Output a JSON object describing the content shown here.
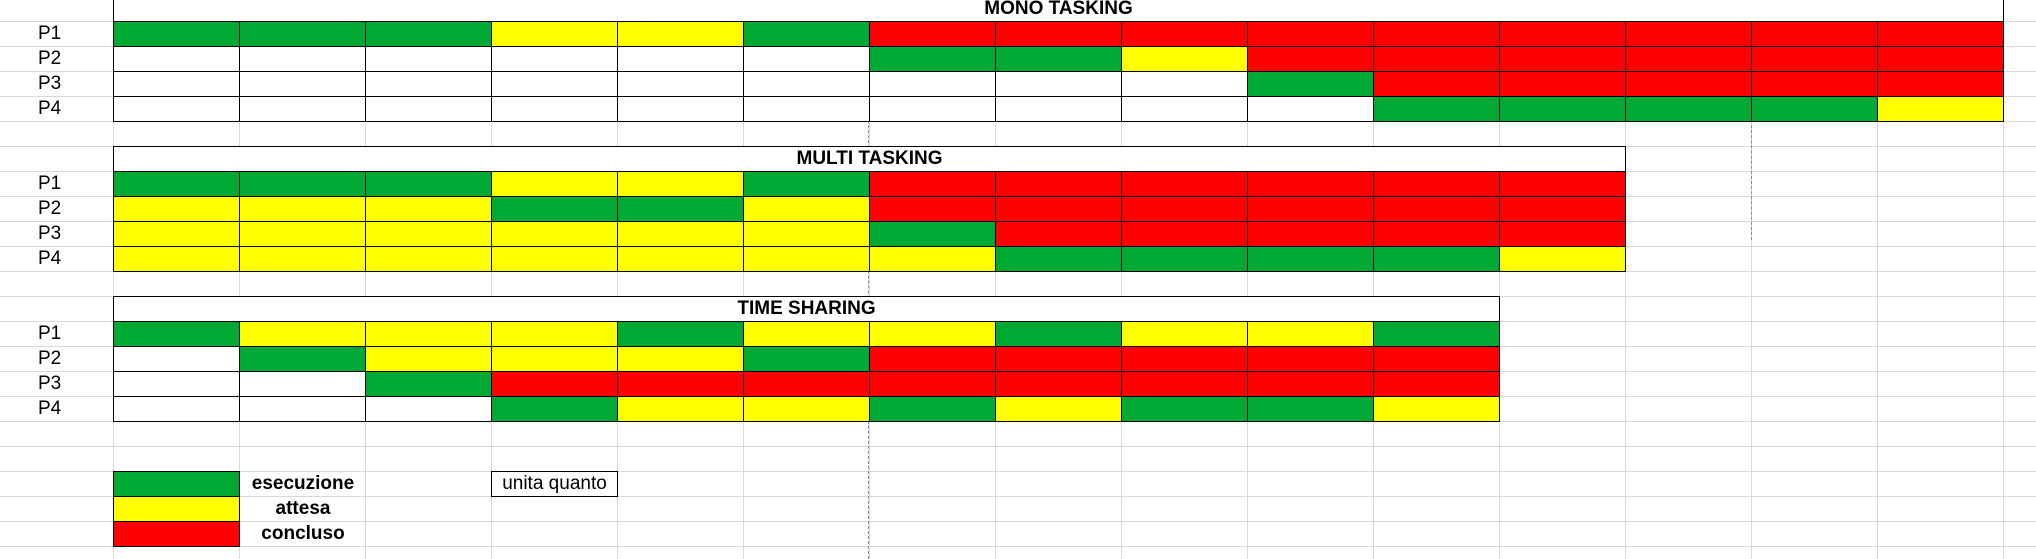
{
  "colors": {
    "E": "#00a933",
    "A": "#ffff00",
    "C": "#ff0000",
    "W": "#ffffff",
    "grid": "#d9d9d9"
  },
  "sections": [
    {
      "title": "MONO TASKING",
      "rows": [
        {
          "label": "P1",
          "cells": [
            "E",
            "E",
            "E",
            "A",
            "A",
            "E",
            "C",
            "C",
            "C",
            "C",
            "C",
            "C",
            "C",
            "C",
            "C"
          ]
        },
        {
          "label": "P2",
          "cells": [
            "W",
            "W",
            "W",
            "W",
            "W",
            "W",
            "E",
            "E",
            "A",
            "C",
            "C",
            "C",
            "C",
            "C",
            "C"
          ]
        },
        {
          "label": "P3",
          "cells": [
            "W",
            "W",
            "W",
            "W",
            "W",
            "W",
            "W",
            "W",
            "W",
            "E",
            "C",
            "C",
            "C",
            "C",
            "C"
          ]
        },
        {
          "label": "P4",
          "cells": [
            "W",
            "W",
            "W",
            "W",
            "W",
            "W",
            "W",
            "W",
            "W",
            "W",
            "E",
            "E",
            "E",
            "E",
            "A"
          ]
        }
      ]
    },
    {
      "title": "MULTI TASKING",
      "rows": [
        {
          "label": "P1",
          "cells": [
            "E",
            "E",
            "E",
            "A",
            "A",
            "E",
            "C",
            "C",
            "C",
            "C",
            "C",
            "C"
          ]
        },
        {
          "label": "P2",
          "cells": [
            "A",
            "A",
            "A",
            "E",
            "E",
            "A",
            "C",
            "C",
            "C",
            "C",
            "C",
            "C"
          ]
        },
        {
          "label": "P3",
          "cells": [
            "A",
            "A",
            "A",
            "A",
            "A",
            "A",
            "E",
            "C",
            "C",
            "C",
            "C",
            "C"
          ]
        },
        {
          "label": "P4",
          "cells": [
            "A",
            "A",
            "A",
            "A",
            "A",
            "A",
            "A",
            "E",
            "E",
            "E",
            "E",
            "A"
          ]
        }
      ]
    },
    {
      "title": "TIME SHARING",
      "rows": [
        {
          "label": "P1",
          "cells": [
            "E",
            "A",
            "A",
            "A",
            "E",
            "A",
            "A",
            "E",
            "A",
            "A",
            "E"
          ]
        },
        {
          "label": "P2",
          "cells": [
            "W",
            "E",
            "A",
            "A",
            "A",
            "E",
            "C",
            "C",
            "C",
            "C",
            "C"
          ]
        },
        {
          "label": "P3",
          "cells": [
            "W",
            "W",
            "E",
            "C",
            "C",
            "C",
            "C",
            "C",
            "C",
            "C",
            "C"
          ]
        },
        {
          "label": "P4",
          "cells": [
            "W",
            "W",
            "W",
            "E",
            "A",
            "A",
            "E",
            "A",
            "E",
            "E",
            "A"
          ]
        }
      ]
    }
  ],
  "legend": [
    {
      "color": "E",
      "label": "esecuzione"
    },
    {
      "color": "A",
      "label": "attesa"
    },
    {
      "color": "C",
      "label": "concluso"
    }
  ],
  "quantum_label": "unita quanto"
}
